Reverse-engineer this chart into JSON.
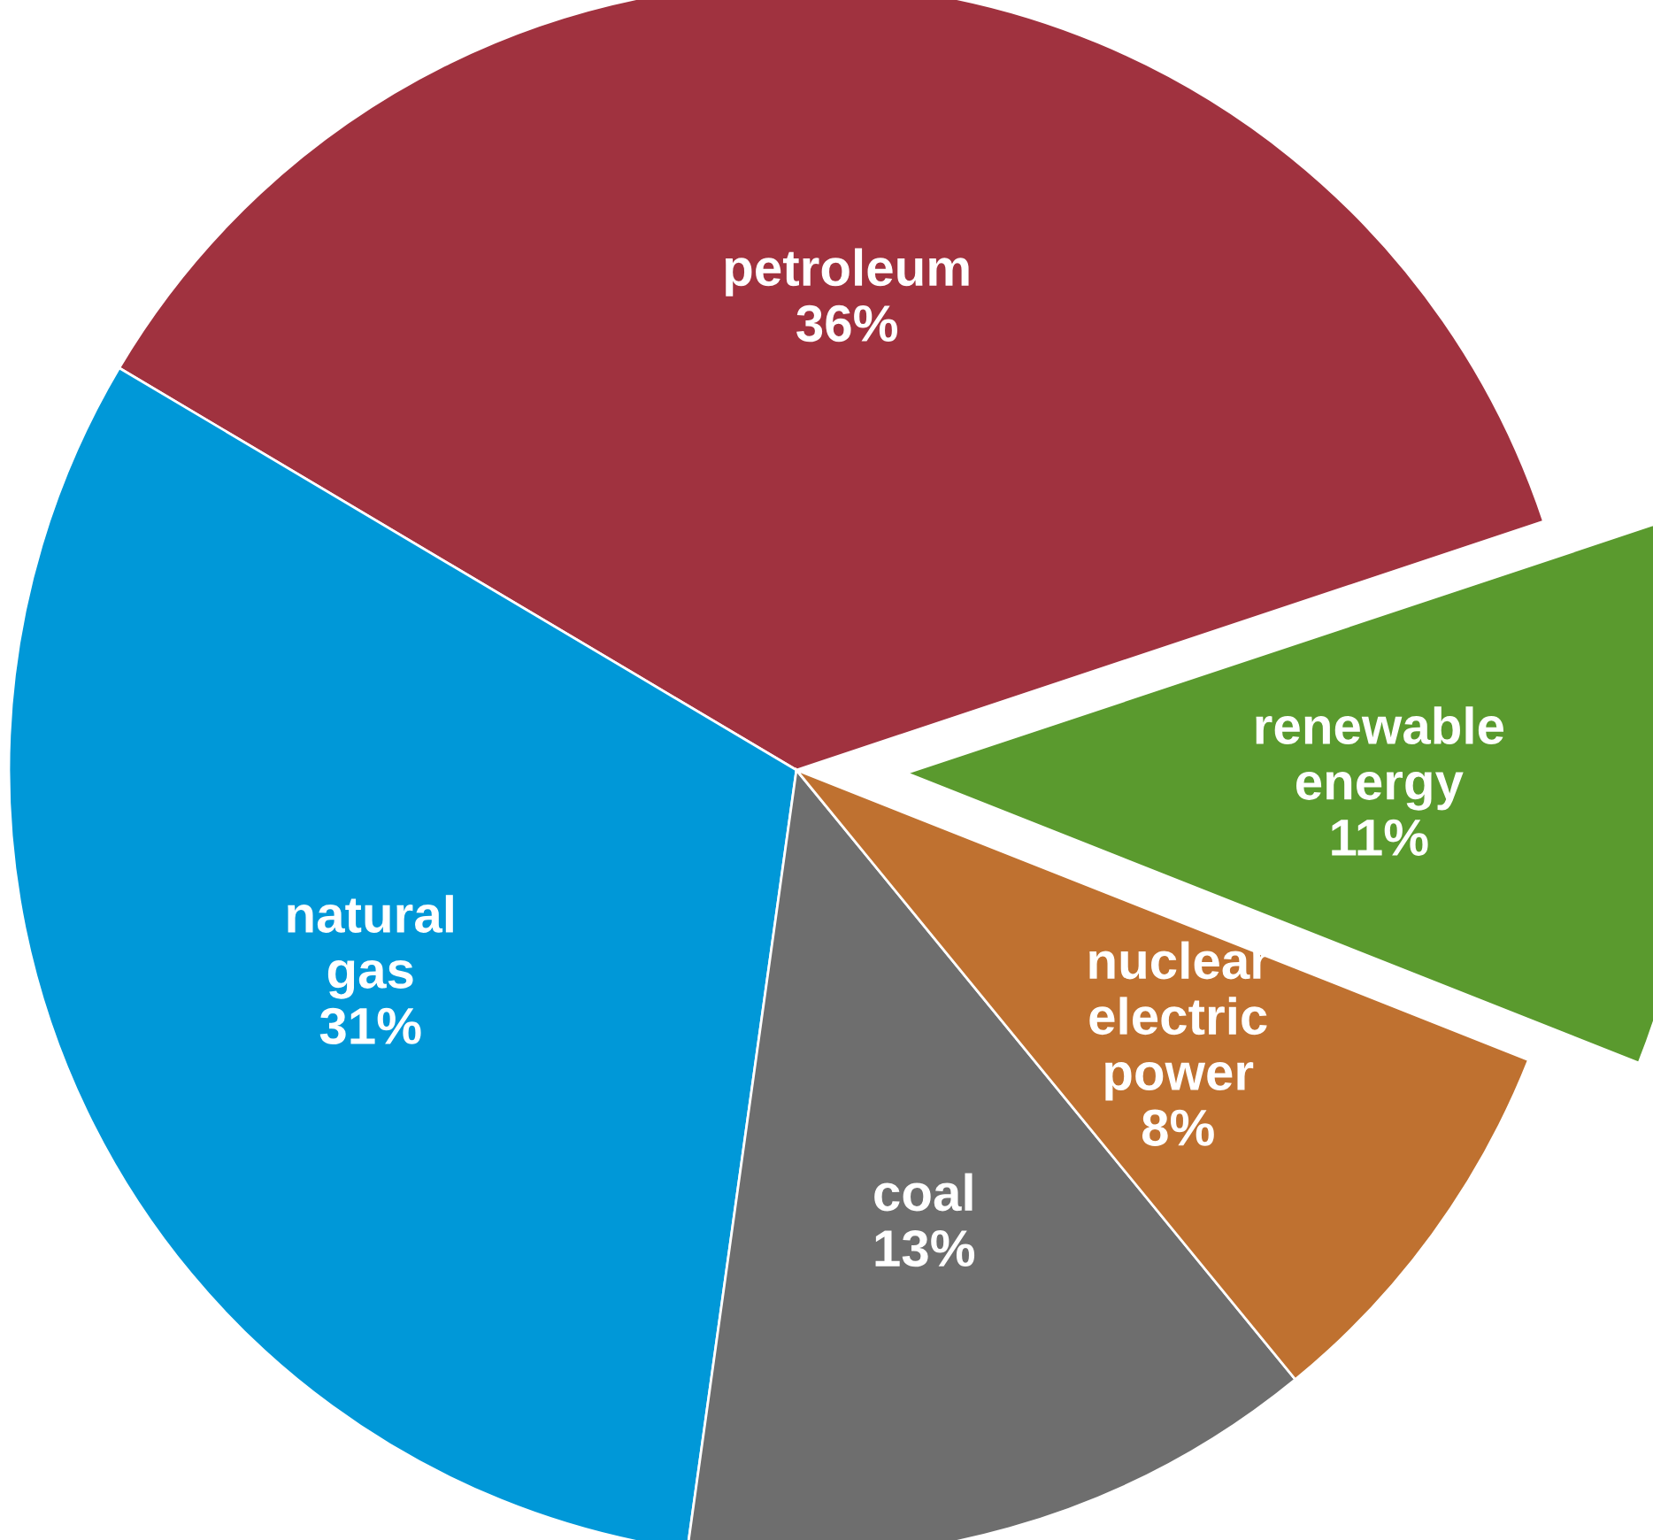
{
  "chart_data": {
    "type": "pie",
    "categories": [
      "renewable\nenergy",
      "petroleum",
      "natural\ngas",
      "coal",
      "nuclear\nelectric\npower"
    ],
    "values": [
      11,
      36,
      31,
      13,
      8
    ],
    "colors": [
      "#5a9a2e",
      "#a0323f",
      "#0098d8",
      "#6e6e6e",
      "#bf7130"
    ],
    "value_labels": [
      "11%",
      "36%",
      "31%",
      "13%",
      "8%"
    ],
    "legend": false
  }
}
